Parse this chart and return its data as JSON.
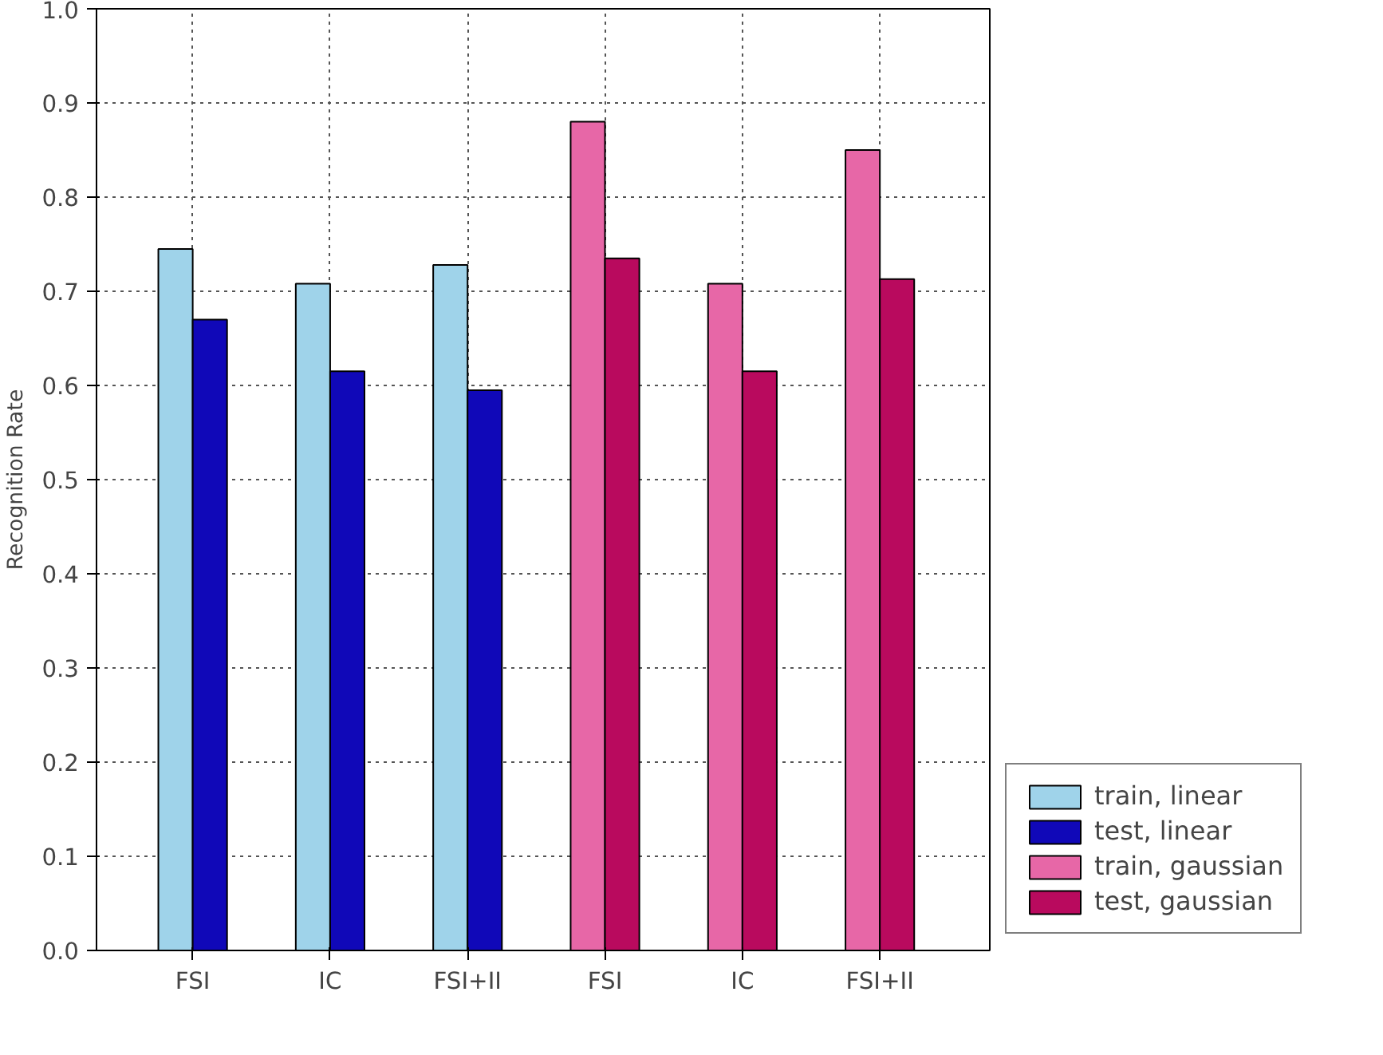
{
  "chart_data": {
    "type": "bar",
    "ylabel": "Recognition Rate",
    "categories": [
      "FSI",
      "IC",
      "FSI+II",
      "FSI",
      "IC",
      "FSI+II"
    ],
    "series": [
      {
        "name": "train, linear",
        "color": "#9fd3ea",
        "values": [
          0.745,
          0.708,
          0.728,
          null,
          null,
          null
        ]
      },
      {
        "name": "test, linear",
        "color": "#1008b8",
        "values": [
          0.67,
          0.615,
          0.595,
          null,
          null,
          null
        ]
      },
      {
        "name": "train, gaussian",
        "color": "#e767a7",
        "values": [
          null,
          null,
          null,
          0.88,
          0.708,
          0.85
        ]
      },
      {
        "name": "test, gaussian",
        "color": "#b90a5e",
        "values": [
          null,
          null,
          null,
          0.735,
          0.615,
          0.713
        ]
      }
    ],
    "ylim": [
      0,
      1.0
    ],
    "yticks": [
      {
        "value": 0,
        "label": "0.0"
      },
      0.1,
      0.2,
      0.3,
      0.4,
      0.5,
      0.6,
      0.7,
      0.8,
      0.9,
      {
        "value": 1,
        "label": "1.0"
      }
    ],
    "grid": true,
    "legend": "bottom right"
  }
}
